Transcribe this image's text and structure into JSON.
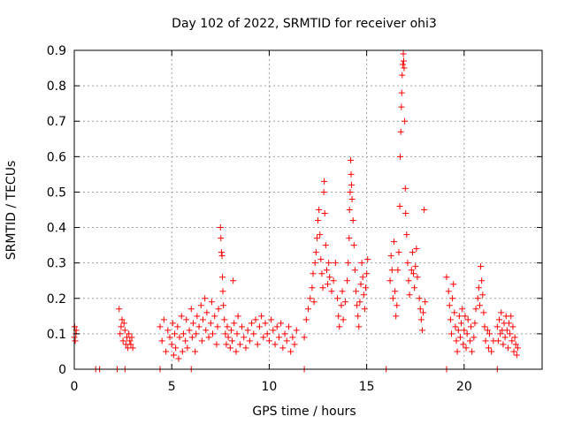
{
  "chart_data": {
    "type": "scatter",
    "title": "Day 102 of 2022, SRMTID for receiver ohi3",
    "xlabel": "GPS time / hours",
    "ylabel": "SRMTID / TECUs",
    "xlim": [
      0,
      24
    ],
    "ylim": [
      0,
      0.9
    ],
    "xticks": [
      0,
      5,
      10,
      15,
      20
    ],
    "yticks": [
      0,
      0.1,
      0.2,
      0.3,
      0.4,
      0.5,
      0.6,
      0.7,
      0.8,
      0.9
    ],
    "xtick_labels": [
      "0",
      "5",
      "10",
      "15",
      "20"
    ],
    "ytick_labels": [
      "0",
      "0.1",
      "0.2",
      "0.3",
      "0.4",
      "0.5",
      "0.6",
      "0.7",
      "0.8",
      "0.9"
    ],
    "grid": true,
    "marker_color": "#ff0000",
    "series": [
      {
        "name": "SRMTID",
        "points": [
          [
            0.0,
            0.09
          ],
          [
            0.02,
            0.12
          ],
          [
            0.05,
            0.08
          ],
          [
            0.08,
            0.1
          ],
          [
            0.1,
            0.11
          ],
          [
            1.1,
            0.0
          ],
          [
            1.3,
            0.0
          ],
          [
            2.2,
            0.0
          ],
          [
            2.6,
            0.0
          ],
          [
            4.4,
            0.0
          ],
          [
            6.0,
            0.0
          ],
          [
            11.8,
            0.0
          ],
          [
            16.0,
            0.0
          ],
          [
            19.1,
            0.0
          ],
          [
            21.7,
            0.0
          ],
          [
            2.3,
            0.17
          ],
          [
            2.35,
            0.1
          ],
          [
            2.4,
            0.12
          ],
          [
            2.45,
            0.14
          ],
          [
            2.5,
            0.08
          ],
          [
            2.55,
            0.13
          ],
          [
            2.6,
            0.11
          ],
          [
            2.65,
            0.07
          ],
          [
            2.7,
            0.09
          ],
          [
            2.75,
            0.06
          ],
          [
            2.8,
            0.1
          ],
          [
            2.85,
            0.08
          ],
          [
            2.9,
            0.07
          ],
          [
            2.95,
            0.09
          ],
          [
            3.0,
            0.06
          ],
          [
            4.4,
            0.12
          ],
          [
            4.5,
            0.08
          ],
          [
            4.6,
            0.14
          ],
          [
            4.7,
            0.05
          ],
          [
            4.8,
            0.11
          ],
          [
            4.9,
            0.09
          ],
          [
            5.0,
            0.07
          ],
          [
            5.05,
            0.13
          ],
          [
            5.1,
            0.04
          ],
          [
            5.15,
            0.1
          ],
          [
            5.2,
            0.06
          ],
          [
            5.3,
            0.12
          ],
          [
            5.35,
            0.03
          ],
          [
            5.4,
            0.09
          ],
          [
            5.5,
            0.15
          ],
          [
            5.55,
            0.05
          ],
          [
            5.6,
            0.1
          ],
          [
            5.7,
            0.08
          ],
          [
            5.75,
            0.14
          ],
          [
            5.8,
            0.06
          ],
          [
            5.9,
            0.11
          ],
          [
            6.0,
            0.17
          ],
          [
            6.05,
            0.09
          ],
          [
            6.1,
            0.13
          ],
          [
            6.2,
            0.05
          ],
          [
            6.25,
            0.1
          ],
          [
            6.3,
            0.15
          ],
          [
            6.4,
            0.12
          ],
          [
            6.5,
            0.18
          ],
          [
            6.55,
            0.08
          ],
          [
            6.6,
            0.14
          ],
          [
            6.7,
            0.2
          ],
          [
            6.75,
            0.11
          ],
          [
            6.8,
            0.16
          ],
          [
            6.9,
            0.09
          ],
          [
            7.0,
            0.13
          ],
          [
            7.05,
            0.19
          ],
          [
            7.1,
            0.1
          ],
          [
            7.2,
            0.15
          ],
          [
            7.3,
            0.07
          ],
          [
            7.35,
            0.12
          ],
          [
            7.4,
            0.17
          ],
          [
            7.5,
            0.4
          ],
          [
            7.52,
            0.37
          ],
          [
            7.55,
            0.33
          ],
          [
            7.58,
            0.32
          ],
          [
            7.6,
            0.26
          ],
          [
            7.62,
            0.22
          ],
          [
            7.65,
            0.18
          ],
          [
            7.7,
            0.14
          ],
          [
            7.75,
            0.1
          ],
          [
            7.8,
            0.07
          ],
          [
            7.85,
            0.12
          ],
          [
            7.9,
            0.09
          ],
          [
            8.0,
            0.06
          ],
          [
            8.05,
            0.11
          ],
          [
            8.1,
            0.08
          ],
          [
            8.15,
            0.25
          ],
          [
            8.2,
            0.13
          ],
          [
            8.3,
            0.05
          ],
          [
            8.35,
            0.1
          ],
          [
            8.4,
            0.15
          ],
          [
            8.5,
            0.07
          ],
          [
            8.6,
            0.12
          ],
          [
            8.7,
            0.09
          ],
          [
            8.8,
            0.06
          ],
          [
            8.9,
            0.11
          ],
          [
            9.0,
            0.08
          ],
          [
            9.1,
            0.13
          ],
          [
            9.2,
            0.1
          ],
          [
            9.3,
            0.14
          ],
          [
            9.4,
            0.07
          ],
          [
            9.5,
            0.12
          ],
          [
            9.6,
            0.15
          ],
          [
            9.7,
            0.09
          ],
          [
            9.8,
            0.13
          ],
          [
            9.9,
            0.1
          ],
          [
            10.0,
            0.08
          ],
          [
            10.1,
            0.14
          ],
          [
            10.2,
            0.11
          ],
          [
            10.3,
            0.07
          ],
          [
            10.4,
            0.12
          ],
          [
            10.5,
            0.09
          ],
          [
            10.6,
            0.13
          ],
          [
            10.7,
            0.06
          ],
          [
            10.8,
            0.1
          ],
          [
            10.9,
            0.08
          ],
          [
            11.0,
            0.12
          ],
          [
            11.1,
            0.05
          ],
          [
            11.2,
            0.09
          ],
          [
            11.3,
            0.07
          ],
          [
            11.4,
            0.11
          ],
          [
            11.8,
            0.09
          ],
          [
            11.9,
            0.14
          ],
          [
            12.0,
            0.17
          ],
          [
            12.1,
            0.2
          ],
          [
            12.2,
            0.23
          ],
          [
            12.25,
            0.27
          ],
          [
            12.3,
            0.19
          ],
          [
            12.35,
            0.3
          ],
          [
            12.4,
            0.33
          ],
          [
            12.45,
            0.37
          ],
          [
            12.5,
            0.42
          ],
          [
            12.55,
            0.45
          ],
          [
            12.6,
            0.38
          ],
          [
            12.65,
            0.31
          ],
          [
            12.7,
            0.27
          ],
          [
            12.75,
            0.23
          ],
          [
            12.8,
            0.5
          ],
          [
            12.82,
            0.53
          ],
          [
            12.85,
            0.44
          ],
          [
            12.9,
            0.35
          ],
          [
            12.95,
            0.28
          ],
          [
            13.0,
            0.24
          ],
          [
            13.05,
            0.3
          ],
          [
            13.1,
            0.26
          ],
          [
            13.2,
            0.22
          ],
          [
            13.3,
            0.25
          ],
          [
            13.4,
            0.3
          ],
          [
            13.5,
            0.2
          ],
          [
            13.55,
            0.15
          ],
          [
            13.6,
            0.12
          ],
          [
            13.7,
            0.18
          ],
          [
            13.75,
            0.22
          ],
          [
            13.8,
            0.14
          ],
          [
            13.9,
            0.19
          ],
          [
            14.0,
            0.25
          ],
          [
            14.05,
            0.3
          ],
          [
            14.1,
            0.37
          ],
          [
            14.12,
            0.45
          ],
          [
            14.15,
            0.5
          ],
          [
            14.18,
            0.59
          ],
          [
            14.2,
            0.55
          ],
          [
            14.22,
            0.52
          ],
          [
            14.25,
            0.48
          ],
          [
            14.3,
            0.42
          ],
          [
            14.35,
            0.35
          ],
          [
            14.4,
            0.28
          ],
          [
            14.45,
            0.22
          ],
          [
            14.5,
            0.18
          ],
          [
            14.55,
            0.15
          ],
          [
            14.6,
            0.12
          ],
          [
            14.65,
            0.19
          ],
          [
            14.7,
            0.24
          ],
          [
            14.75,
            0.3
          ],
          [
            14.8,
            0.26
          ],
          [
            14.85,
            0.21
          ],
          [
            14.9,
            0.17
          ],
          [
            14.95,
            0.23
          ],
          [
            15.0,
            0.27
          ],
          [
            15.05,
            0.31
          ],
          [
            16.2,
            0.25
          ],
          [
            16.25,
            0.32
          ],
          [
            16.3,
            0.28
          ],
          [
            16.35,
            0.2
          ],
          [
            16.4,
            0.36
          ],
          [
            16.45,
            0.22
          ],
          [
            16.5,
            0.15
          ],
          [
            16.55,
            0.18
          ],
          [
            16.6,
            0.28
          ],
          [
            16.65,
            0.33
          ],
          [
            16.7,
            0.46
          ],
          [
            16.72,
            0.6
          ],
          [
            16.75,
            0.67
          ],
          [
            16.78,
            0.74
          ],
          [
            16.8,
            0.78
          ],
          [
            16.82,
            0.83
          ],
          [
            16.85,
            0.86
          ],
          [
            16.88,
            0.89
          ],
          [
            16.9,
            0.87
          ],
          [
            16.92,
            0.85
          ],
          [
            16.95,
            0.7
          ],
          [
            16.98,
            0.51
          ],
          [
            17.0,
            0.44
          ],
          [
            17.05,
            0.38
          ],
          [
            17.1,
            0.3
          ],
          [
            17.15,
            0.25
          ],
          [
            17.2,
            0.21
          ],
          [
            17.3,
            0.28
          ],
          [
            17.35,
            0.33
          ],
          [
            17.4,
            0.27
          ],
          [
            17.45,
            0.23
          ],
          [
            17.5,
            0.29
          ],
          [
            17.55,
            0.34
          ],
          [
            17.6,
            0.26
          ],
          [
            17.7,
            0.2
          ],
          [
            17.75,
            0.17
          ],
          [
            17.8,
            0.14
          ],
          [
            17.85,
            0.11
          ],
          [
            17.9,
            0.16
          ],
          [
            17.95,
            0.45
          ],
          [
            18.0,
            0.19
          ],
          [
            19.1,
            0.26
          ],
          [
            19.2,
            0.22
          ],
          [
            19.25,
            0.18
          ],
          [
            19.3,
            0.14
          ],
          [
            19.35,
            0.1
          ],
          [
            19.4,
            0.2
          ],
          [
            19.45,
            0.24
          ],
          [
            19.5,
            0.16
          ],
          [
            19.55,
            0.12
          ],
          [
            19.6,
            0.08
          ],
          [
            19.65,
            0.05
          ],
          [
            19.7,
            0.11
          ],
          [
            19.75,
            0.15
          ],
          [
            19.8,
            0.09
          ],
          [
            19.85,
            0.13
          ],
          [
            19.9,
            0.17
          ],
          [
            19.95,
            0.07
          ],
          [
            20.0,
            0.11
          ],
          [
            20.05,
            0.15
          ],
          [
            20.1,
            0.06
          ],
          [
            20.15,
            0.1
          ],
          [
            20.2,
            0.14
          ],
          [
            20.3,
            0.08
          ],
          [
            20.35,
            0.12
          ],
          [
            20.4,
            0.05
          ],
          [
            20.5,
            0.09
          ],
          [
            20.55,
            0.13
          ],
          [
            20.6,
            0.17
          ],
          [
            20.7,
            0.2
          ],
          [
            20.75,
            0.23
          ],
          [
            20.8,
            0.18
          ],
          [
            20.85,
            0.29
          ],
          [
            20.9,
            0.25
          ],
          [
            20.95,
            0.21
          ],
          [
            21.0,
            0.16
          ],
          [
            21.05,
            0.12
          ],
          [
            21.1,
            0.08
          ],
          [
            21.2,
            0.11
          ],
          [
            21.25,
            0.06
          ],
          [
            21.3,
            0.1
          ],
          [
            21.4,
            0.05
          ],
          [
            21.5,
            0.08
          ],
          [
            21.7,
            0.12
          ],
          [
            21.75,
            0.08
          ],
          [
            21.8,
            0.14
          ],
          [
            21.85,
            0.1
          ],
          [
            21.9,
            0.16
          ],
          [
            21.95,
            0.11
          ],
          [
            22.0,
            0.07
          ],
          [
            22.05,
            0.13
          ],
          [
            22.1,
            0.09
          ],
          [
            22.15,
            0.15
          ],
          [
            22.2,
            0.11
          ],
          [
            22.25,
            0.06
          ],
          [
            22.3,
            0.13
          ],
          [
            22.35,
            0.1
          ],
          [
            22.4,
            0.15
          ],
          [
            22.45,
            0.08
          ],
          [
            22.5,
            0.12
          ],
          [
            22.55,
            0.05
          ],
          [
            22.6,
            0.09
          ],
          [
            22.65,
            0.07
          ],
          [
            22.7,
            0.04
          ],
          [
            22.75,
            0.06
          ]
        ]
      }
    ]
  }
}
